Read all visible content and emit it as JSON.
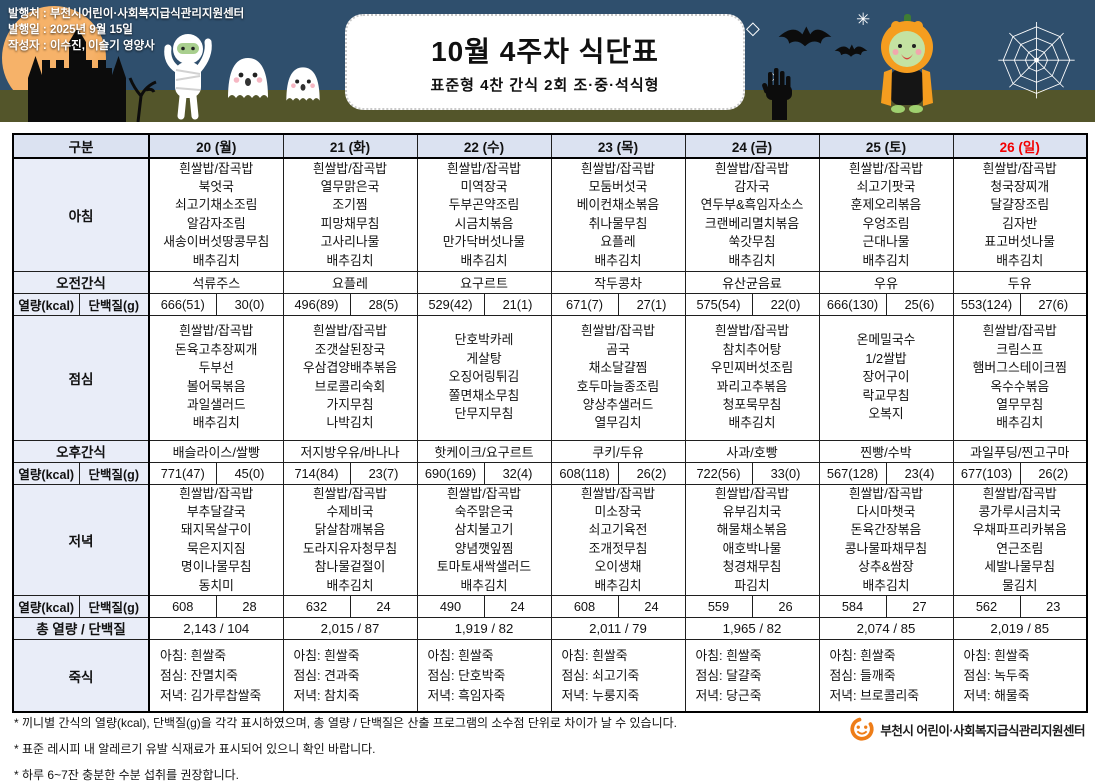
{
  "header": {
    "publisher": "발행처 : 부천시어린이·사회복지급식관리지원센터",
    "publish_date": "발행일 : 2025년 9월 15일",
    "author": "작성자 : 이수진, 이슬기 영양사",
    "title": "10월 4주차 식단표",
    "subtitle": "표준형 4찬 간식 2회 조·중·석식형"
  },
  "colors": {
    "banner_navy": "#2f4f6d",
    "ground_olive": "#53552a",
    "moon_orange": "#f2a44c",
    "header_cell_bg": "#dbe2f1",
    "label_cell_bg": "#e9edf8",
    "sunday_red": "#f30000",
    "logo_orange": "#ee7d18"
  },
  "table": {
    "corner_label": "구분",
    "days": [
      "20 (월)",
      "21 (화)",
      "22 (수)",
      "23 (목)",
      "24 (금)",
      "25 (토)",
      "26 (일)"
    ],
    "sunday_index": 6,
    "row_labels": {
      "breakfast": "아침",
      "am_snack": "오전간식",
      "kcal": "열량(kcal)",
      "protein": "단백질(g)",
      "lunch": "점심",
      "pm_snack": "오후간식",
      "dinner": "저녁",
      "total": "총 열량 / 단백질",
      "porridge": "죽식"
    },
    "breakfast": [
      [
        "흰쌀밥/잡곡밥",
        "북엇국",
        "쇠고기채소조림",
        "알감자조림",
        "새송이버섯땅콩무침",
        "배추김치"
      ],
      [
        "흰쌀밥/잡곡밥",
        "열무맑은국",
        "조기찜",
        "피망채무침",
        "고사리나물",
        "배추김치"
      ],
      [
        "흰쌀밥/잡곡밥",
        "미역장국",
        "두부곤약조림",
        "시금치볶음",
        "만가닥버섯나물",
        "배추김치"
      ],
      [
        "흰쌀밥/잡곡밥",
        "모둠버섯국",
        "베이컨채소볶음",
        "취나물무침",
        "요플레",
        "배추김치"
      ],
      [
        "흰쌀밥/잡곡밥",
        "감자국",
        "연두부&흑임자소스",
        "크랜베리멸치볶음",
        "쑥갓무침",
        "배추김치"
      ],
      [
        "흰쌀밥/잡곡밥",
        "쇠고기팟국",
        "훈제오리볶음",
        "우엉조림",
        "근대나물",
        "배추김치"
      ],
      [
        "흰쌀밥/잡곡밥",
        "청국장찌개",
        "달걀장조림",
        "김자반",
        "표고버섯나물",
        "배추김치"
      ]
    ],
    "am_snack": [
      "석류주스",
      "요플레",
      "요구르트",
      "작두콩차",
      "유산균음료",
      "우유",
      "두유"
    ],
    "am_values": [
      [
        "666(51)",
        "30(0)"
      ],
      [
        "496(89)",
        "28(5)"
      ],
      [
        "529(42)",
        "21(1)"
      ],
      [
        "671(7)",
        "27(1)"
      ],
      [
        "575(54)",
        "22(0)"
      ],
      [
        "666(130)",
        "25(6)"
      ],
      [
        "553(124)",
        "27(6)"
      ]
    ],
    "lunch": [
      [
        "흰쌀밥/잡곡밥",
        "돈육고추장찌개",
        "두부선",
        "볼어묵볶음",
        "과일샐러드",
        "배추김치"
      ],
      [
        "흰쌀밥/잡곡밥",
        "조갯살된장국",
        "우삼겹양배추볶음",
        "브로콜리숙회",
        "가지무침",
        "나박김치"
      ],
      [
        "단호박카레",
        "게살탕",
        "오징어링튀김",
        "쫄면채소무침",
        "단무지무침"
      ],
      [
        "흰쌀밥/잡곡밥",
        "곰국",
        "채소달걀찜",
        "호두마늘종조림",
        "양상추샐러드",
        "열무김치"
      ],
      [
        "흰쌀밥/잡곡밥",
        "참치추어탕",
        "우민찌버섯조림",
        "꽈리고추볶음",
        "청포묵무침",
        "배추김치"
      ],
      [
        "온메밀국수",
        "1/2쌀밥",
        "장어구이",
        "락교무침",
        "오복지"
      ],
      [
        "흰쌀밥/잡곡밥",
        "크림스프",
        "햄버그스테이크찜",
        "옥수수볶음",
        "열무무침",
        "배추김치"
      ]
    ],
    "pm_snack": [
      "배슬라이스/쌀빵",
      "저지방우유/바나나",
      "핫케이크/요구르트",
      "쿠키/두유",
      "사과/호빵",
      "찐빵/수박",
      "과일푸딩/찐고구마"
    ],
    "pm_values": [
      [
        "771(47)",
        "45(0)"
      ],
      [
        "714(84)",
        "23(7)"
      ],
      [
        "690(169)",
        "32(4)"
      ],
      [
        "608(118)",
        "26(2)"
      ],
      [
        "722(56)",
        "33(0)"
      ],
      [
        "567(128)",
        "23(4)"
      ],
      [
        "677(103)",
        "26(2)"
      ]
    ],
    "dinner": [
      [
        "흰쌀밥/잡곡밥",
        "부추달걀국",
        "돼지목살구이",
        "묵은지지짐",
        "명이나물무침",
        "동치미"
      ],
      [
        "흰쌀밥/잡곡밥",
        "수제비국",
        "닭살참깨볶음",
        "도라지유자청무침",
        "참나물겉절이",
        "배추김치"
      ],
      [
        "흰쌀밥/잡곡밥",
        "숙주맑은국",
        "삼치불고기",
        "양념깻잎찜",
        "토마토새싹샐러드",
        "배추김치"
      ],
      [
        "흰쌀밥/잡곡밥",
        "미소장국",
        "쇠고기육전",
        "조개젓무침",
        "오이생채",
        "배추김치"
      ],
      [
        "흰쌀밥/잡곡밥",
        "유부김치국",
        "해물채소볶음",
        "애호박나물",
        "청경채무침",
        "파김치"
      ],
      [
        "흰쌀밥/잡곡밥",
        "다시마챗국",
        "돈육간장볶음",
        "콩나물파채무침",
        "상추&쌈장",
        "배추김치"
      ],
      [
        "흰쌀밥/잡곡밥",
        "콩가루시금치국",
        "우채파프리카볶음",
        "연근조림",
        "세발나물무침",
        "물김치"
      ]
    ],
    "dinner_values": [
      [
        "608",
        "28"
      ],
      [
        "632",
        "24"
      ],
      [
        "490",
        "24"
      ],
      [
        "608",
        "24"
      ],
      [
        "559",
        "26"
      ],
      [
        "584",
        "27"
      ],
      [
        "562",
        "23"
      ]
    ],
    "totals": [
      "2,143 / 104",
      "2,015 / 87",
      "1,919 / 82",
      "2,011 / 79",
      "1,965 / 82",
      "2,074 / 85",
      "2,019 / 85"
    ],
    "porridge": [
      [
        "아침: 흰쌀죽",
        "점심: 잔멸치죽",
        "저녁: 김가루찹쌀죽"
      ],
      [
        "아침: 흰쌀죽",
        "점심: 견과죽",
        "저녁: 참치죽"
      ],
      [
        "아침: 흰쌀죽",
        "점심: 단호박죽",
        "저녁: 흑임자죽"
      ],
      [
        "아침: 흰쌀죽",
        "점심: 쇠고기죽",
        "저녁: 누룽지죽"
      ],
      [
        "아침: 흰쌀죽",
        "점심: 달걀죽",
        "저녁: 당근죽"
      ],
      [
        "아침: 흰쌀죽",
        "점심: 들깨죽",
        "저녁: 브로콜리죽"
      ],
      [
        "아침: 흰쌀죽",
        "점심: 녹두죽",
        "저녁: 해물죽"
      ]
    ]
  },
  "footer": {
    "notes": [
      "* 끼니별 간식의 열량(kcal), 단백질(g)을 각각 표시하였으며, 총 열량 / 단백질은 산출 프로그램의 소수점 단위로 차이가 날 수 있습니다.",
      "* 표준 레시피 내 알레르기 유발 식재료가 표시되어 있으니 확인 바랍니다.",
      "* 하루 6~7잔 충분한 수분 섭취를 권장합니다."
    ],
    "logo_text": "부천시 어린이·사회복지급식관리지원센터"
  }
}
